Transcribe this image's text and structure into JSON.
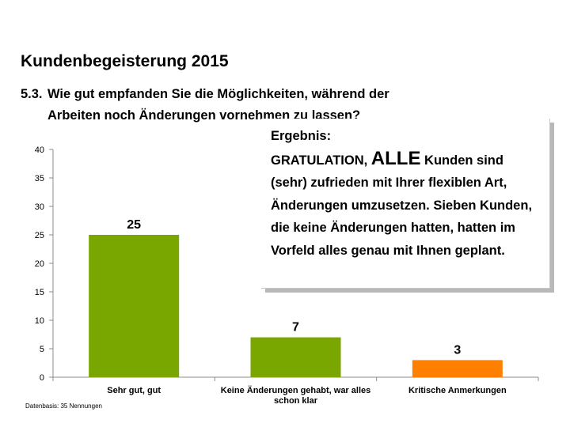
{
  "header": {
    "title": "Kundenbegeisterung 2015",
    "question_number": "5.3.",
    "question_line1": "Wie gut empfanden Sie die Möglichkeiten, während der",
    "question_line2": "Arbeiten noch Änderungen vornehmen zu lassen?"
  },
  "callout": {
    "heading": "Ergebnis:",
    "lead": "GRATULATION, ",
    "emphasis": "ALLE",
    "body_line1": " Kunden sind",
    "body_rest": "(sehr) zufrieden mit Ihrer flexiblen Art, Änderungen umzusetzen. Sieben Kunden, die keine Änderungen hatten, hatten im Vorfeld alles genau mit Ihnen geplant."
  },
  "footer": {
    "source": "Datenbasis: 35 Nennungen"
  },
  "colors": {
    "bar_green": "#7aa600",
    "bar_orange": "#ff7f00",
    "axis": "#8c8c8c"
  },
  "chart_data": {
    "type": "bar",
    "categories": [
      "Sehr gut, gut",
      "Keine Änderungen gehabt, war alles schon klar",
      "Kritische Anmerkungen"
    ],
    "category_lines": [
      [
        "Sehr gut, gut"
      ],
      [
        "Keine Änderungen gehabt, war alles",
        "schon klar"
      ],
      [
        "Kritische Anmerkungen"
      ]
    ],
    "values": [
      25,
      7,
      3
    ],
    "value_labels": [
      "25",
      "7",
      "3"
    ],
    "bar_colors": [
      "#7aa600",
      "#7aa600",
      "#ff7f00"
    ],
    "ylim": [
      0,
      40
    ],
    "yticks": [
      0,
      5,
      10,
      15,
      20,
      25,
      30,
      35,
      40
    ],
    "grid": false,
    "legend": "none"
  }
}
